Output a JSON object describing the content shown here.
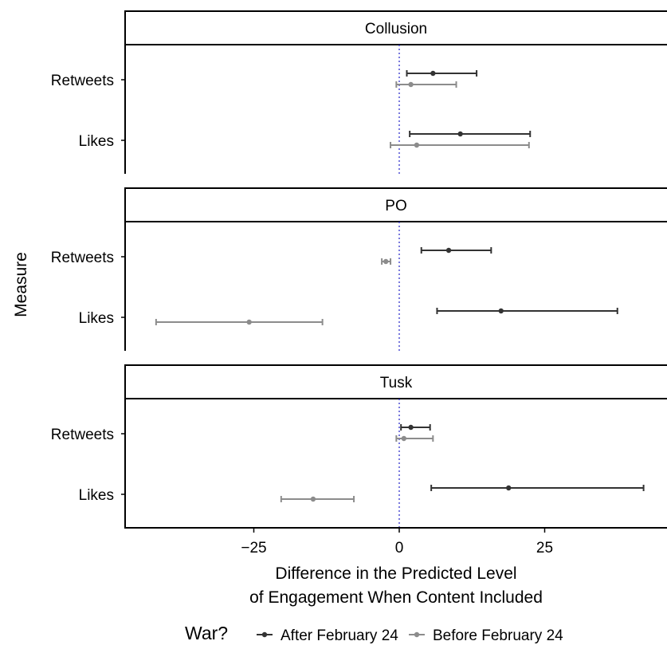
{
  "chart_data": {
    "type": "point-range",
    "xlabel_lines": [
      "Difference in the Predicted Level",
      "of Engagement When Content Included"
    ],
    "ylabel": "Measure",
    "xlim": [
      -47,
      47
    ],
    "x_ticks": [
      -25,
      0,
      25
    ],
    "x_tick_labels": [
      "−25",
      "0",
      "25"
    ],
    "reference_line": 0,
    "categories": [
      "Retweets",
      "Likes"
    ],
    "legend": {
      "title": "War?",
      "position": "bottom",
      "entries": [
        {
          "label": "After February 24",
          "color": "#333333"
        },
        {
          "label": "Before February 24",
          "color": "#8c8c8c"
        }
      ]
    },
    "panels": [
      {
        "title": "Collusion",
        "series": [
          {
            "name": "After February 24",
            "points": [
              {
                "category": "Retweets",
                "estimate": 5.8,
                "low": 1.3,
                "high": 13.3
              },
              {
                "category": "Likes",
                "estimate": 10.5,
                "low": 1.8,
                "high": 22.5
              }
            ]
          },
          {
            "name": "Before February 24",
            "points": [
              {
                "category": "Retweets",
                "estimate": 2.0,
                "low": -0.5,
                "high": 9.8
              },
              {
                "category": "Likes",
                "estimate": 3.0,
                "low": -1.5,
                "high": 22.3
              }
            ]
          }
        ]
      },
      {
        "title": "PO",
        "series": [
          {
            "name": "After February 24",
            "points": [
              {
                "category": "Retweets",
                "estimate": 8.5,
                "low": 3.8,
                "high": 15.8
              },
              {
                "category": "Likes",
                "estimate": 17.5,
                "low": 6.5,
                "high": 37.5
              }
            ]
          },
          {
            "name": "Before February 24",
            "points": [
              {
                "category": "Retweets",
                "estimate": -2.3,
                "low": -3.0,
                "high": -1.5
              },
              {
                "category": "Likes",
                "estimate": -25.8,
                "low": -41.8,
                "high": -13.2
              }
            ]
          }
        ]
      },
      {
        "title": "Tusk",
        "series": [
          {
            "name": "After February 24",
            "points": [
              {
                "category": "Retweets",
                "estimate": 2.0,
                "low": 0.3,
                "high": 5.3
              },
              {
                "category": "Likes",
                "estimate": 18.8,
                "low": 5.5,
                "high": 42.0
              }
            ]
          },
          {
            "name": "Before February 24",
            "points": [
              {
                "category": "Retweets",
                "estimate": 0.8,
                "low": -0.5,
                "high": 5.8
              },
              {
                "category": "Likes",
                "estimate": -14.8,
                "low": -20.3,
                "high": -7.8
              }
            ]
          }
        ]
      }
    ]
  }
}
